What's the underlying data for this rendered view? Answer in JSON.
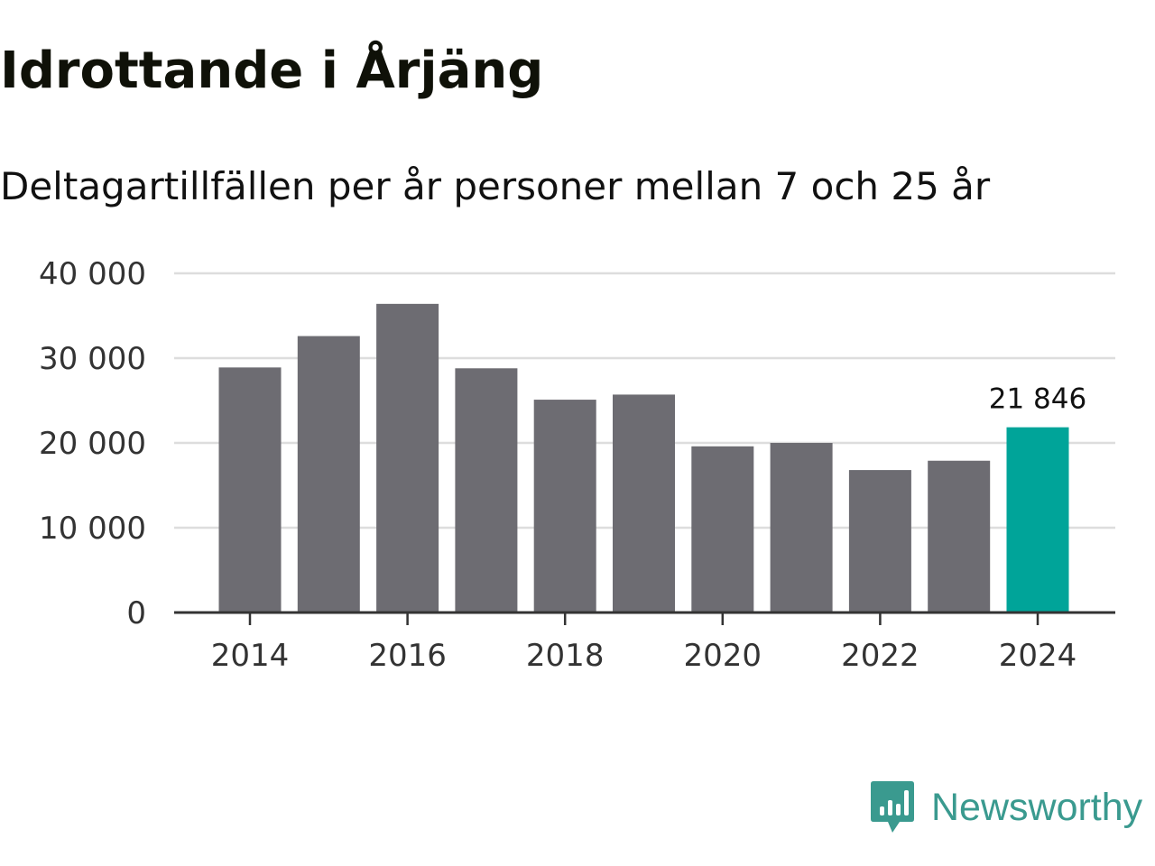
{
  "header": {
    "title": "Idrottande i Årjäng",
    "subtitle": "Deltagartillfällen per år personer mellan 7 och 25 år"
  },
  "logo": {
    "text": "Newsworthy",
    "icon": "bar-chart-pin-icon",
    "color": "#3a9a8f"
  },
  "chart_data": {
    "type": "bar",
    "title": "Idrottande i Årjäng",
    "subtitle": "Deltagartillfällen per år personer mellan 7 och 25 år",
    "xlabel": "",
    "ylabel": "",
    "categories": [
      "2014",
      "2015",
      "2016",
      "2017",
      "2018",
      "2019",
      "2020",
      "2021",
      "2022",
      "2023",
      "2024"
    ],
    "values": [
      28900,
      32600,
      36400,
      28800,
      25100,
      25700,
      19600,
      20000,
      16800,
      17900,
      21846
    ],
    "highlight_index": 10,
    "highlight_label": "21 846",
    "ylim": [
      0,
      40000
    ],
    "yticks": [
      0,
      10000,
      20000,
      30000,
      40000
    ],
    "ytick_labels": [
      "0",
      "10 000",
      "20 000",
      "30 000",
      "40 000"
    ],
    "xtick_labels": [
      "2014",
      "2016",
      "2018",
      "2020",
      "2022",
      "2024"
    ],
    "grid": true,
    "colors": {
      "bar": "#6d6c72",
      "highlight": "#00a499",
      "grid": "#dddddd",
      "axis": "#333333"
    }
  }
}
